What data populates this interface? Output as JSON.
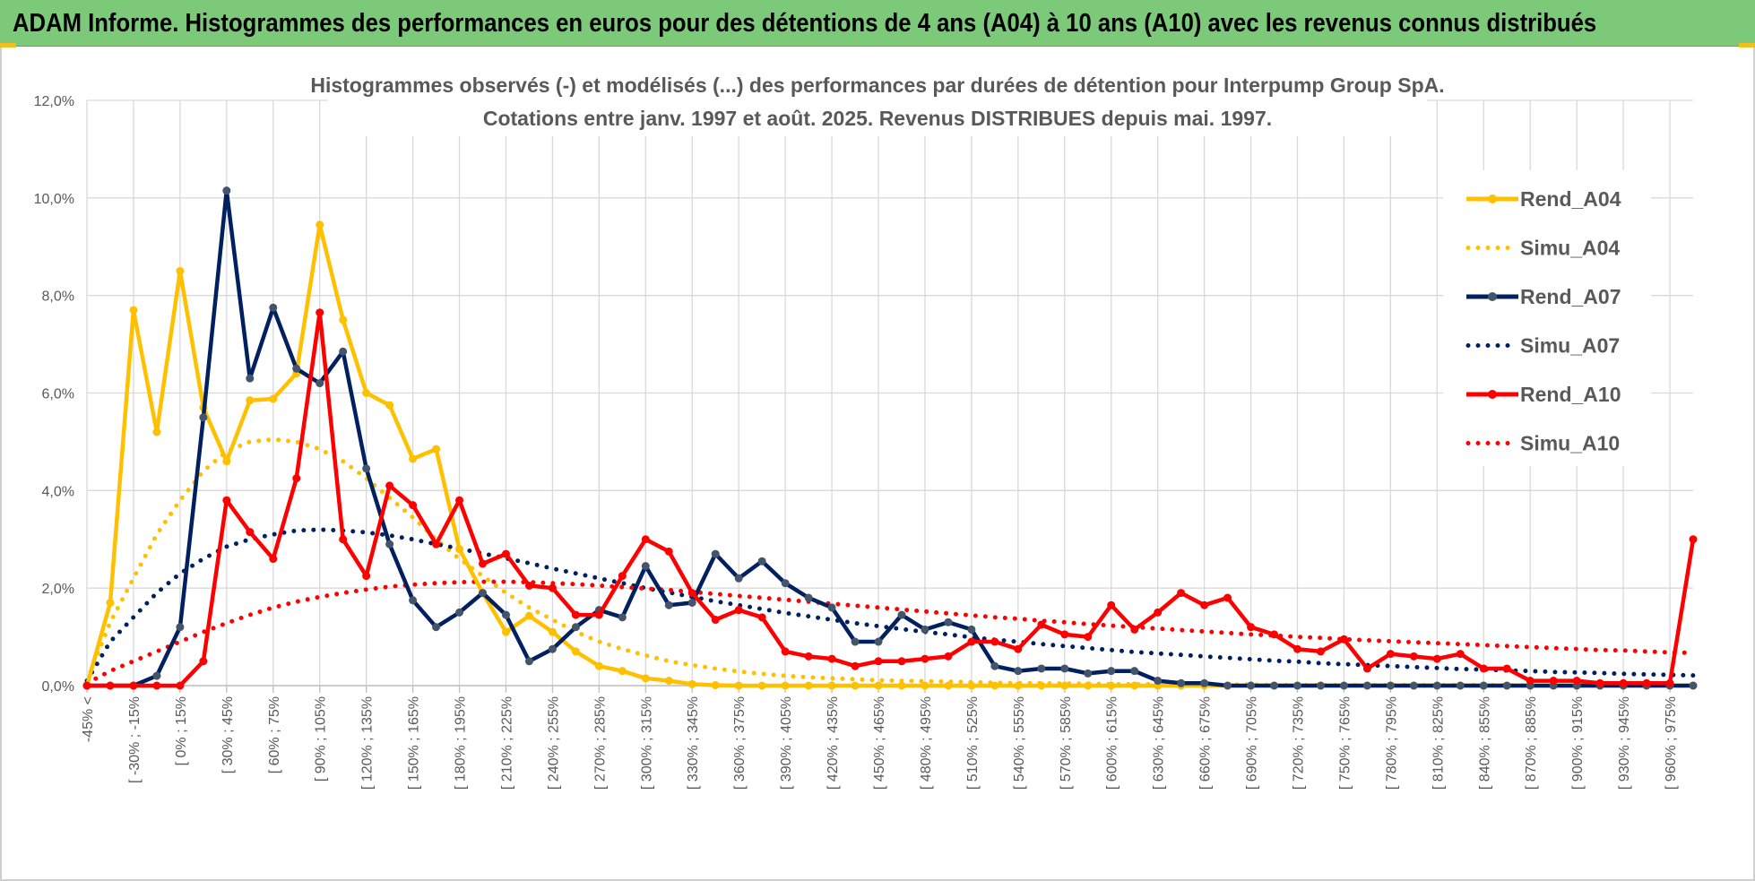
{
  "banner": {
    "title": "ADAM Informe. Histogrammes des performances en euros pour des détentions de 4 ans (A04) à 10 ans (A10) avec les revenus connus distribués"
  },
  "colors": {
    "banner": "#7dc97a",
    "A04": "#ffc000",
    "A07": "#002060",
    "A10": "#ff0000",
    "grid": "#d9d9d9",
    "text": "#595959"
  },
  "chart_data": {
    "type": "line",
    "title": "Histogrammes observés (-) et modélisés (...) des performances par durées de détention pour Interpump Group SpA.",
    "subtitle": "Cotations entre janv. 1997 et août. 2025. Revenus DISTRIBUES depuis mai. 1997.",
    "xlabel": "",
    "ylabel": "",
    "ylim": [
      0,
      0.12
    ],
    "yticks": [
      "0,0%",
      "2,0%",
      "4,0%",
      "6,0%",
      "8,0%",
      "10,0%",
      "12,0%"
    ],
    "grid": true,
    "legend_position": "right",
    "x_tick_labels": [
      "-45% <",
      "[ -30% ; -15%",
      "[ 0% ; 15%",
      "[ 30% ; 45%",
      "[ 60% ; 75%",
      "[ 90% ; 105%",
      "[ 120% ; 135%",
      "[ 150% ; 165%",
      "[ 180% ; 195%",
      "[ 210% ; 225%",
      "[ 240% ; 255%",
      "[ 270% ; 285%",
      "[ 300% ; 315%",
      "[ 330% ; 345%",
      "[ 360% ; 375%",
      "[ 390% ; 405%",
      "[ 420% ; 435%",
      "[ 450% ; 465%",
      "[ 480% ; 495%",
      "[ 510% ; 525%",
      "[ 540% ; 555%",
      "[ 570% ; 585%",
      "[ 600% ; 615%",
      "[ 630% ; 645%",
      "[ 660% ; 675%",
      "[ 690% ; 705%",
      "[ 720% ; 735%",
      "[ 750% ; 765%",
      "[ 780% ; 795%",
      "[ 810% ; 825%",
      "[ 840% ; 855%",
      "[ 870% ; 885%",
      "[ 900% ; 915%",
      "[ 930% ; 945%",
      "[ 960% ; 975%"
    ],
    "x_tick_every": 2,
    "n_categories": 70,
    "series": [
      {
        "name": "Rend_A04",
        "style": "solid",
        "color": "#ffc000",
        "values": [
          0.0,
          0.017,
          0.077,
          0.052,
          0.085,
          0.057,
          0.046,
          0.0585,
          0.0588,
          0.064,
          0.0945,
          0.075,
          0.06,
          0.0575,
          0.0465,
          0.0485,
          0.028,
          0.019,
          0.011,
          0.0143,
          0.011,
          0.007,
          0.004,
          0.003,
          0.0015,
          0.001,
          0.0003,
          0.0001,
          0,
          0,
          0,
          0,
          0,
          0,
          0,
          0,
          0,
          0,
          0,
          0,
          0,
          0,
          0,
          0,
          0,
          0,
          0,
          0,
          0,
          0,
          0,
          0,
          0,
          0,
          0,
          0,
          0,
          0,
          0,
          0,
          0,
          0,
          0,
          0,
          0,
          0,
          0,
          0,
          0,
          0
        ]
      },
      {
        "name": "Simu_A04",
        "style": "dotted",
        "color": "#ffc000",
        "values": [
          0.001,
          0.013,
          0.022,
          0.031,
          0.038,
          0.044,
          0.048,
          0.05,
          0.0505,
          0.05,
          0.0485,
          0.046,
          0.0425,
          0.0385,
          0.0345,
          0.03,
          0.026,
          0.0225,
          0.019,
          0.016,
          0.0135,
          0.011,
          0.009,
          0.0075,
          0.0062,
          0.005,
          0.0042,
          0.0035,
          0.0029,
          0.0024,
          0.002,
          0.0017,
          0.0015,
          0.0013,
          0.0011,
          0.001,
          0.0009,
          0.0008,
          0.0007,
          0.0006,
          0.0005,
          0.0005,
          0.0004,
          0.0004,
          0.0003,
          0.0003,
          0.0003,
          0.0002,
          0.0002,
          0.0002,
          0.0002,
          0.0001,
          0.0001,
          0.0001,
          0.0001,
          0.0001,
          0.0001,
          0.0001,
          0.0001,
          0.0001,
          0.0001,
          0.0001,
          0,
          0,
          0,
          0,
          0,
          0,
          0,
          0
        ]
      },
      {
        "name": "Rend_A07",
        "style": "solid",
        "color": "#002060",
        "values": [
          0.0,
          0.0,
          0.0,
          0.002,
          0.012,
          0.055,
          0.1015,
          0.063,
          0.0775,
          0.065,
          0.062,
          0.0685,
          0.0445,
          0.029,
          0.0175,
          0.012,
          0.015,
          0.019,
          0.0145,
          0.005,
          0.0075,
          0.012,
          0.0155,
          0.014,
          0.0245,
          0.0165,
          0.017,
          0.027,
          0.022,
          0.0255,
          0.021,
          0.018,
          0.016,
          0.009,
          0.009,
          0.0145,
          0.0115,
          0.013,
          0.0115,
          0.004,
          0.003,
          0.0035,
          0.0035,
          0.0025,
          0.003,
          0.003,
          0.001,
          0.0005,
          0.0005,
          0,
          0,
          0,
          0,
          0,
          0,
          0,
          0,
          0,
          0,
          0,
          0,
          0,
          0,
          0,
          0,
          0,
          0,
          0,
          0,
          0
        ]
      },
      {
        "name": "Simu_A07",
        "style": "dotted",
        "color": "#002060",
        "values": [
          0.001,
          0.009,
          0.014,
          0.019,
          0.023,
          0.026,
          0.0285,
          0.03,
          0.031,
          0.0318,
          0.032,
          0.0318,
          0.0314,
          0.0308,
          0.03,
          0.029,
          0.0281,
          0.0271,
          0.0261,
          0.0251,
          0.024,
          0.023,
          0.022,
          0.021,
          0.02,
          0.0191,
          0.0182,
          0.0173,
          0.0165,
          0.0157,
          0.0149,
          0.0142,
          0.0135,
          0.0128,
          0.0122,
          0.0116,
          0.011,
          0.0105,
          0.0099,
          0.0094,
          0.009,
          0.0085,
          0.0081,
          0.0077,
          0.0073,
          0.0069,
          0.0066,
          0.0063,
          0.006,
          0.0057,
          0.0054,
          0.0051,
          0.0049,
          0.0046,
          0.0044,
          0.0042,
          0.004,
          0.0038,
          0.0036,
          0.0034,
          0.0033,
          0.0031,
          0.003,
          0.0028,
          0.0027,
          0.0026,
          0.0024,
          0.0023,
          0.0022,
          0.0021
        ]
      },
      {
        "name": "Rend_A10",
        "style": "solid",
        "color": "#ff0000",
        "values": [
          0.0,
          0.0,
          0.0,
          0.0,
          0.0,
          0.005,
          0.038,
          0.0315,
          0.026,
          0.0425,
          0.0765,
          0.03,
          0.0225,
          0.041,
          0.037,
          0.029,
          0.038,
          0.025,
          0.027,
          0.0205,
          0.02,
          0.0145,
          0.0145,
          0.0225,
          0.03,
          0.0275,
          0.019,
          0.0135,
          0.0155,
          0.014,
          0.007,
          0.006,
          0.0055,
          0.004,
          0.005,
          0.005,
          0.0055,
          0.006,
          0.009,
          0.009,
          0.0075,
          0.0125,
          0.0105,
          0.01,
          0.0165,
          0.0115,
          0.015,
          0.019,
          0.0165,
          0.018,
          0.012,
          0.0105,
          0.0075,
          0.007,
          0.0095,
          0.0035,
          0.0065,
          0.006,
          0.0055,
          0.0065,
          0.0035,
          0.0035,
          0.001,
          0.001,
          0.001,
          0.0005,
          0.0005,
          0.0005,
          0.0005,
          0.03
        ]
      },
      {
        "name": "Simu_A10",
        "style": "dotted",
        "color": "#ff0000",
        "values": [
          0.0005,
          0.003,
          0.005,
          0.007,
          0.009,
          0.011,
          0.0128,
          0.0145,
          0.016,
          0.0172,
          0.0182,
          0.019,
          0.0197,
          0.0203,
          0.0207,
          0.021,
          0.0212,
          0.0213,
          0.0213,
          0.0212,
          0.021,
          0.0208,
          0.0205,
          0.0202,
          0.0199,
          0.0196,
          0.0192,
          0.0188,
          0.0184,
          0.018,
          0.0176,
          0.0172,
          0.0168,
          0.0164,
          0.016,
          0.0156,
          0.0152,
          0.0148,
          0.0144,
          0.014,
          0.0137,
          0.0133,
          0.013,
          0.0126,
          0.0123,
          0.012,
          0.0117,
          0.0114,
          0.0111,
          0.0108,
          0.0105,
          0.0103,
          0.01,
          0.0098,
          0.0095,
          0.0093,
          0.0091,
          0.0089,
          0.0087,
          0.0085,
          0.0083,
          0.0081,
          0.0079,
          0.0077,
          0.0075,
          0.0073,
          0.0072,
          0.007,
          0.0068,
          0.0067
        ]
      }
    ]
  }
}
